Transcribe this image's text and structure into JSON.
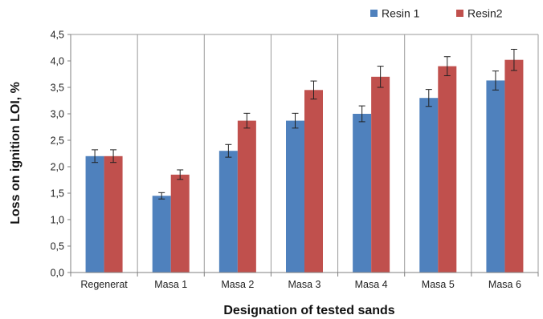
{
  "chart_data": {
    "type": "bar",
    "title": "",
    "xlabel": "Designation of tested sands",
    "ylabel": "Loss on ignition LOI, %",
    "ylim": [
      0,
      4.5
    ],
    "ytick_step": 0.5,
    "ytick_labels": [
      "0,0",
      "0,5",
      "1,0",
      "1,5",
      "2,0",
      "2,5",
      "3,0",
      "3,5",
      "4,0",
      "4,5"
    ],
    "categories": [
      "Regenerat",
      "Masa 1",
      "Masa 2",
      "Masa 3",
      "Masa 4",
      "Masa 5",
      "Masa 6"
    ],
    "series": [
      {
        "name": "Resin 1",
        "color": "#4F81BD",
        "values": [
          2.2,
          1.45,
          2.3,
          2.87,
          3.0,
          3.3,
          3.63
        ],
        "errors": [
          0.12,
          0.06,
          0.12,
          0.14,
          0.15,
          0.16,
          0.18
        ]
      },
      {
        "name": "Resin2",
        "color": "#C0504D",
        "values": [
          2.2,
          1.85,
          2.87,
          3.45,
          3.7,
          3.9,
          4.02
        ],
        "errors": [
          0.12,
          0.09,
          0.14,
          0.17,
          0.2,
          0.18,
          0.2
        ]
      }
    ],
    "grid": "vertical category separators",
    "legend_position": "top-right",
    "error_bars": true
  }
}
